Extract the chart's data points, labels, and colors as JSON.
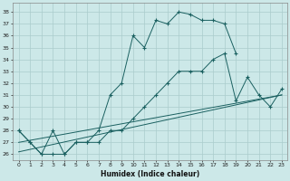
{
  "xlabel": "Humidex (Indice chaleur)",
  "xlim": [
    -0.5,
    23.5
  ],
  "ylim": [
    25.5,
    38.8
  ],
  "yticks": [
    26,
    27,
    28,
    29,
    30,
    31,
    32,
    33,
    34,
    35,
    36,
    37,
    38
  ],
  "xticks": [
    0,
    1,
    2,
    3,
    4,
    5,
    6,
    7,
    8,
    9,
    10,
    11,
    12,
    13,
    14,
    15,
    16,
    17,
    18,
    19,
    20,
    21,
    22,
    23
  ],
  "background_color": "#cce8e8",
  "grid_color": "#aacccc",
  "line_color": "#1a6060",
  "series": [
    {
      "x": [
        0,
        1,
        2,
        3,
        4,
        5,
        6,
        7,
        8,
        9,
        10,
        11,
        12,
        13,
        14,
        15,
        16,
        17,
        18,
        19,
        20,
        21,
        22,
        23
      ],
      "y": [
        28,
        27,
        26,
        28,
        26,
        27,
        27,
        28,
        31,
        32,
        36,
        35,
        37.3,
        37,
        38,
        37.8,
        37.3,
        37.3,
        37,
        34.5,
        null,
        null,
        null,
        null
      ],
      "has_markers": true
    },
    {
      "x": [
        0,
        1,
        2,
        3,
        4,
        5,
        6,
        7,
        8,
        9,
        10,
        11,
        12,
        13,
        14,
        15,
        16,
        17,
        18,
        19,
        20,
        21,
        22,
        23
      ],
      "y": [
        28,
        27,
        26,
        26,
        26,
        27,
        27,
        27,
        28,
        28,
        29,
        30,
        31,
        32,
        33,
        33,
        33,
        34,
        34.5,
        30.5,
        32.5,
        31,
        30,
        31.5
      ],
      "has_markers": true
    },
    {
      "x": [
        0,
        23
      ],
      "y": [
        27,
        31
      ],
      "has_markers": false
    },
    {
      "x": [
        0,
        23
      ],
      "y": [
        26.2,
        31
      ],
      "has_markers": false
    }
  ]
}
